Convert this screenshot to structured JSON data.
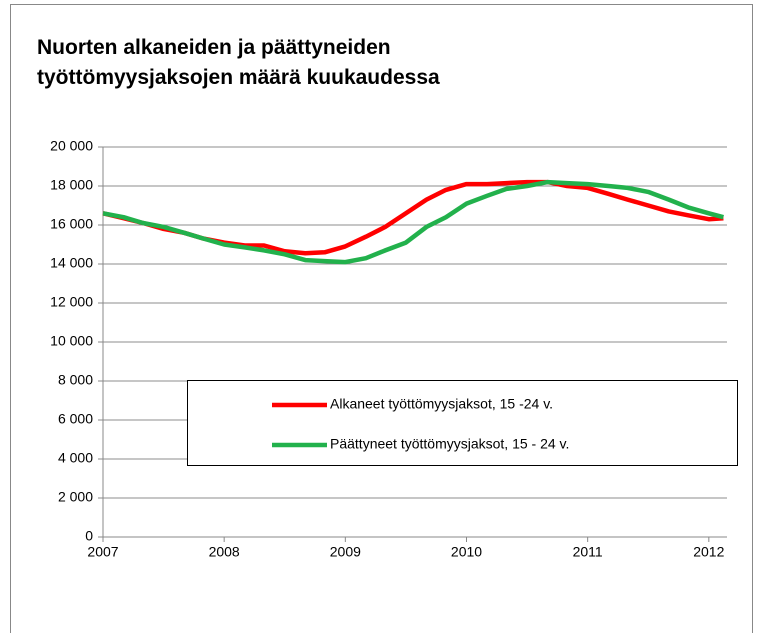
{
  "chart_data": {
    "type": "line",
    "title": "Nuorten alkaneiden ja päättyneiden",
    "subtitle": "työttömyysjaksojen määrä kuukaudessa",
    "x": [
      2007,
      2007.17,
      2007.33,
      2007.5,
      2007.67,
      2007.83,
      2008,
      2008.17,
      2008.33,
      2008.5,
      2008.67,
      2008.83,
      2009,
      2009.17,
      2009.33,
      2009.5,
      2009.67,
      2009.83,
      2010,
      2010.17,
      2010.33,
      2010.5,
      2010.67,
      2010.83,
      2011,
      2011.17,
      2011.33,
      2011.5,
      2011.67,
      2011.83,
      2012,
      2012.12
    ],
    "series": [
      {
        "name": "Alkaneet työttömyysjaksot, 15 -24 v.",
        "color": "#ff0000",
        "values": [
          16600,
          16350,
          16100,
          15800,
          15600,
          15300,
          15100,
          14950,
          14950,
          14650,
          14550,
          14600,
          14900,
          15400,
          15900,
          16600,
          17300,
          17800,
          18100,
          18100,
          18150,
          18200,
          18200,
          18000,
          17900,
          17600,
          17300,
          17000,
          16700,
          16500,
          16300,
          16350
        ]
      },
      {
        "name": "Päättyneet työttömyysjaksot, 15 - 24 v.",
        "color": "#22b14c",
        "values": [
          16600,
          16400,
          16100,
          15900,
          15600,
          15300,
          15000,
          14850,
          14700,
          14500,
          14200,
          14150,
          14100,
          14300,
          14700,
          15100,
          15900,
          16400,
          17100,
          17500,
          17850,
          18000,
          18200,
          18150,
          18100,
          18000,
          17900,
          17700,
          17300,
          16900,
          16600,
          16400
        ]
      }
    ],
    "xlim": [
      2007,
      2012.15
    ],
    "xticks": [
      2007,
      2008,
      2009,
      2010,
      2011,
      2012
    ],
    "ylim": [
      0,
      20000
    ],
    "yticks": [
      0,
      {
        "value": 2000,
        "label": "2 000"
      },
      {
        "value": 4000,
        "label": "4 000"
      },
      {
        "value": 6000,
        "label": "6 000"
      },
      {
        "value": 8000,
        "label": "8 000"
      },
      {
        "value": 10000,
        "label": "10 000"
      },
      {
        "value": 12000,
        "label": "12 000"
      },
      {
        "value": 14000,
        "label": "14 000"
      },
      {
        "value": 16000,
        "label": "16 000"
      },
      {
        "value": 18000,
        "label": "18 000"
      },
      {
        "value": 20000,
        "label": "20 000"
      }
    ],
    "grid": true
  }
}
